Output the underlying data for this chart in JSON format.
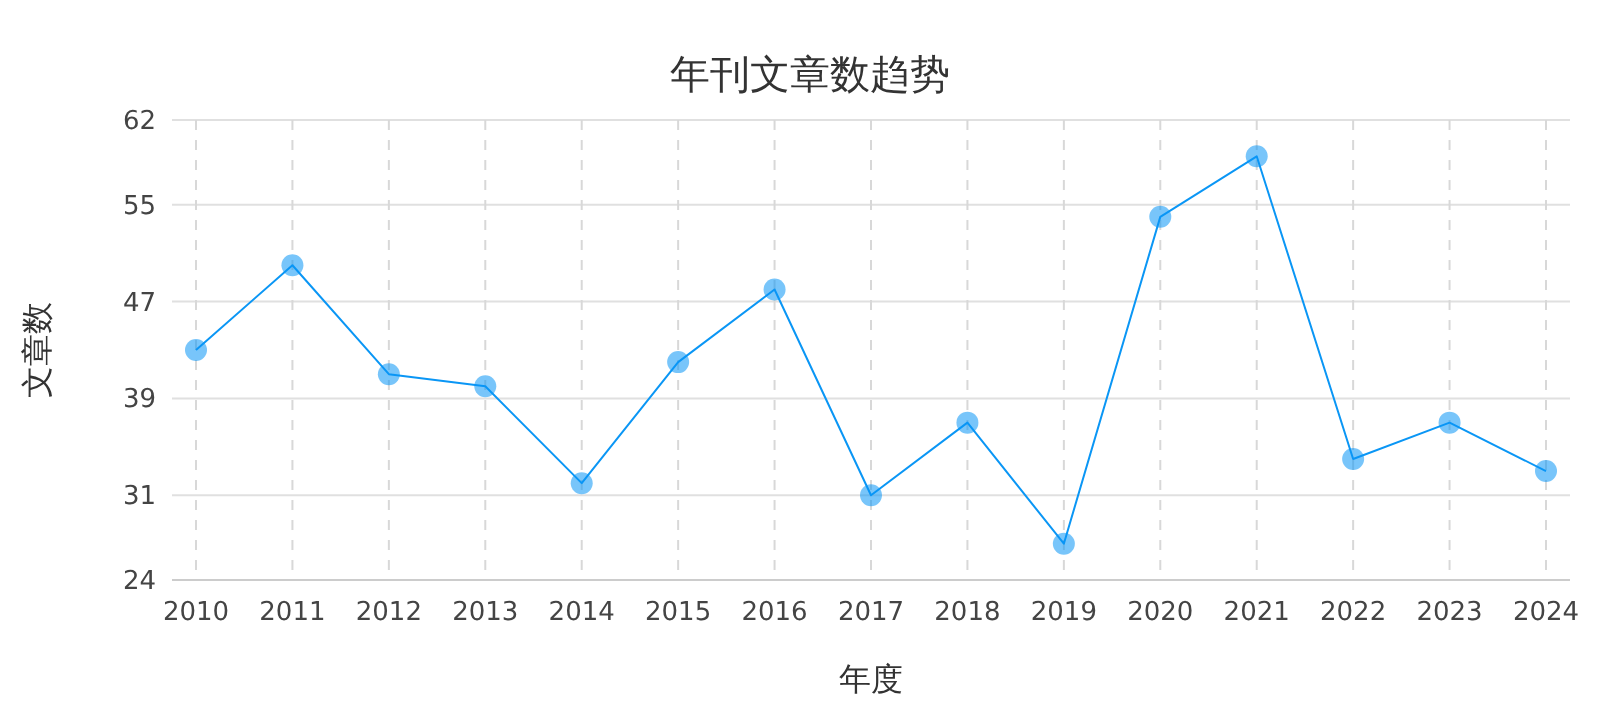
{
  "chart_data": {
    "type": "line",
    "title": "年刊文章数趋势",
    "xlabel": "年度",
    "ylabel": "文章数",
    "categories": [
      "2010",
      "2011",
      "2012",
      "2013",
      "2014",
      "2015",
      "2016",
      "2017",
      "2018",
      "2019",
      "2020",
      "2021",
      "2022",
      "2023",
      "2024"
    ],
    "series": [
      {
        "color": "#0a96f5",
        "values": [
          43,
          50,
          41,
          40,
          32,
          42,
          48,
          31,
          37,
          27,
          54,
          59,
          34,
          37,
          33
        ]
      }
    ],
    "ylim": [
      24,
      62
    ],
    "yticks": [
      24,
      31,
      39,
      47,
      55,
      62
    ],
    "grid": true,
    "marker": "circle",
    "line_style": "solid"
  }
}
